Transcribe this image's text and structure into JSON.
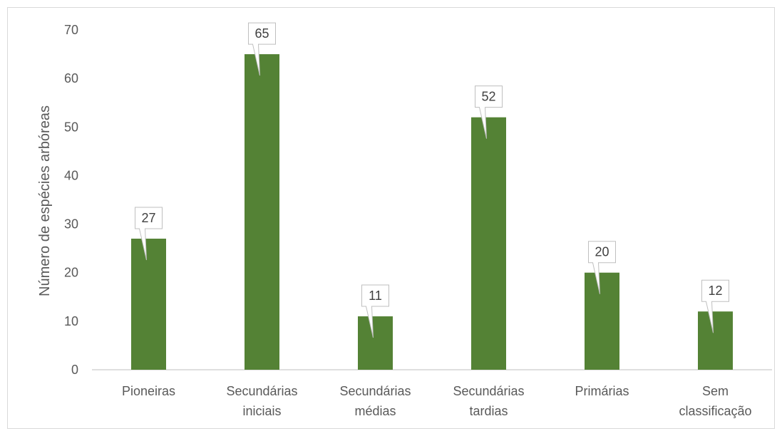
{
  "chart_data": {
    "type": "bar",
    "title": "",
    "xlabel": "",
    "ylabel": "Número de espécies arbóreas",
    "ylim": [
      0,
      70
    ],
    "y_ticks": [
      0,
      10,
      20,
      30,
      40,
      50,
      60,
      70
    ],
    "grid": false,
    "legend": "none",
    "categories": [
      [
        "Pioneiras"
      ],
      [
        "Secundárias",
        "iniciais"
      ],
      [
        "Secundárias",
        "médias"
      ],
      [
        "Secundárias",
        "tardias"
      ],
      [
        "Primárias"
      ],
      [
        "Sem",
        "classificação"
      ]
    ],
    "values": [
      27,
      65,
      11,
      52,
      20,
      12
    ],
    "bar_color": "#548235",
    "data_labels": true
  }
}
